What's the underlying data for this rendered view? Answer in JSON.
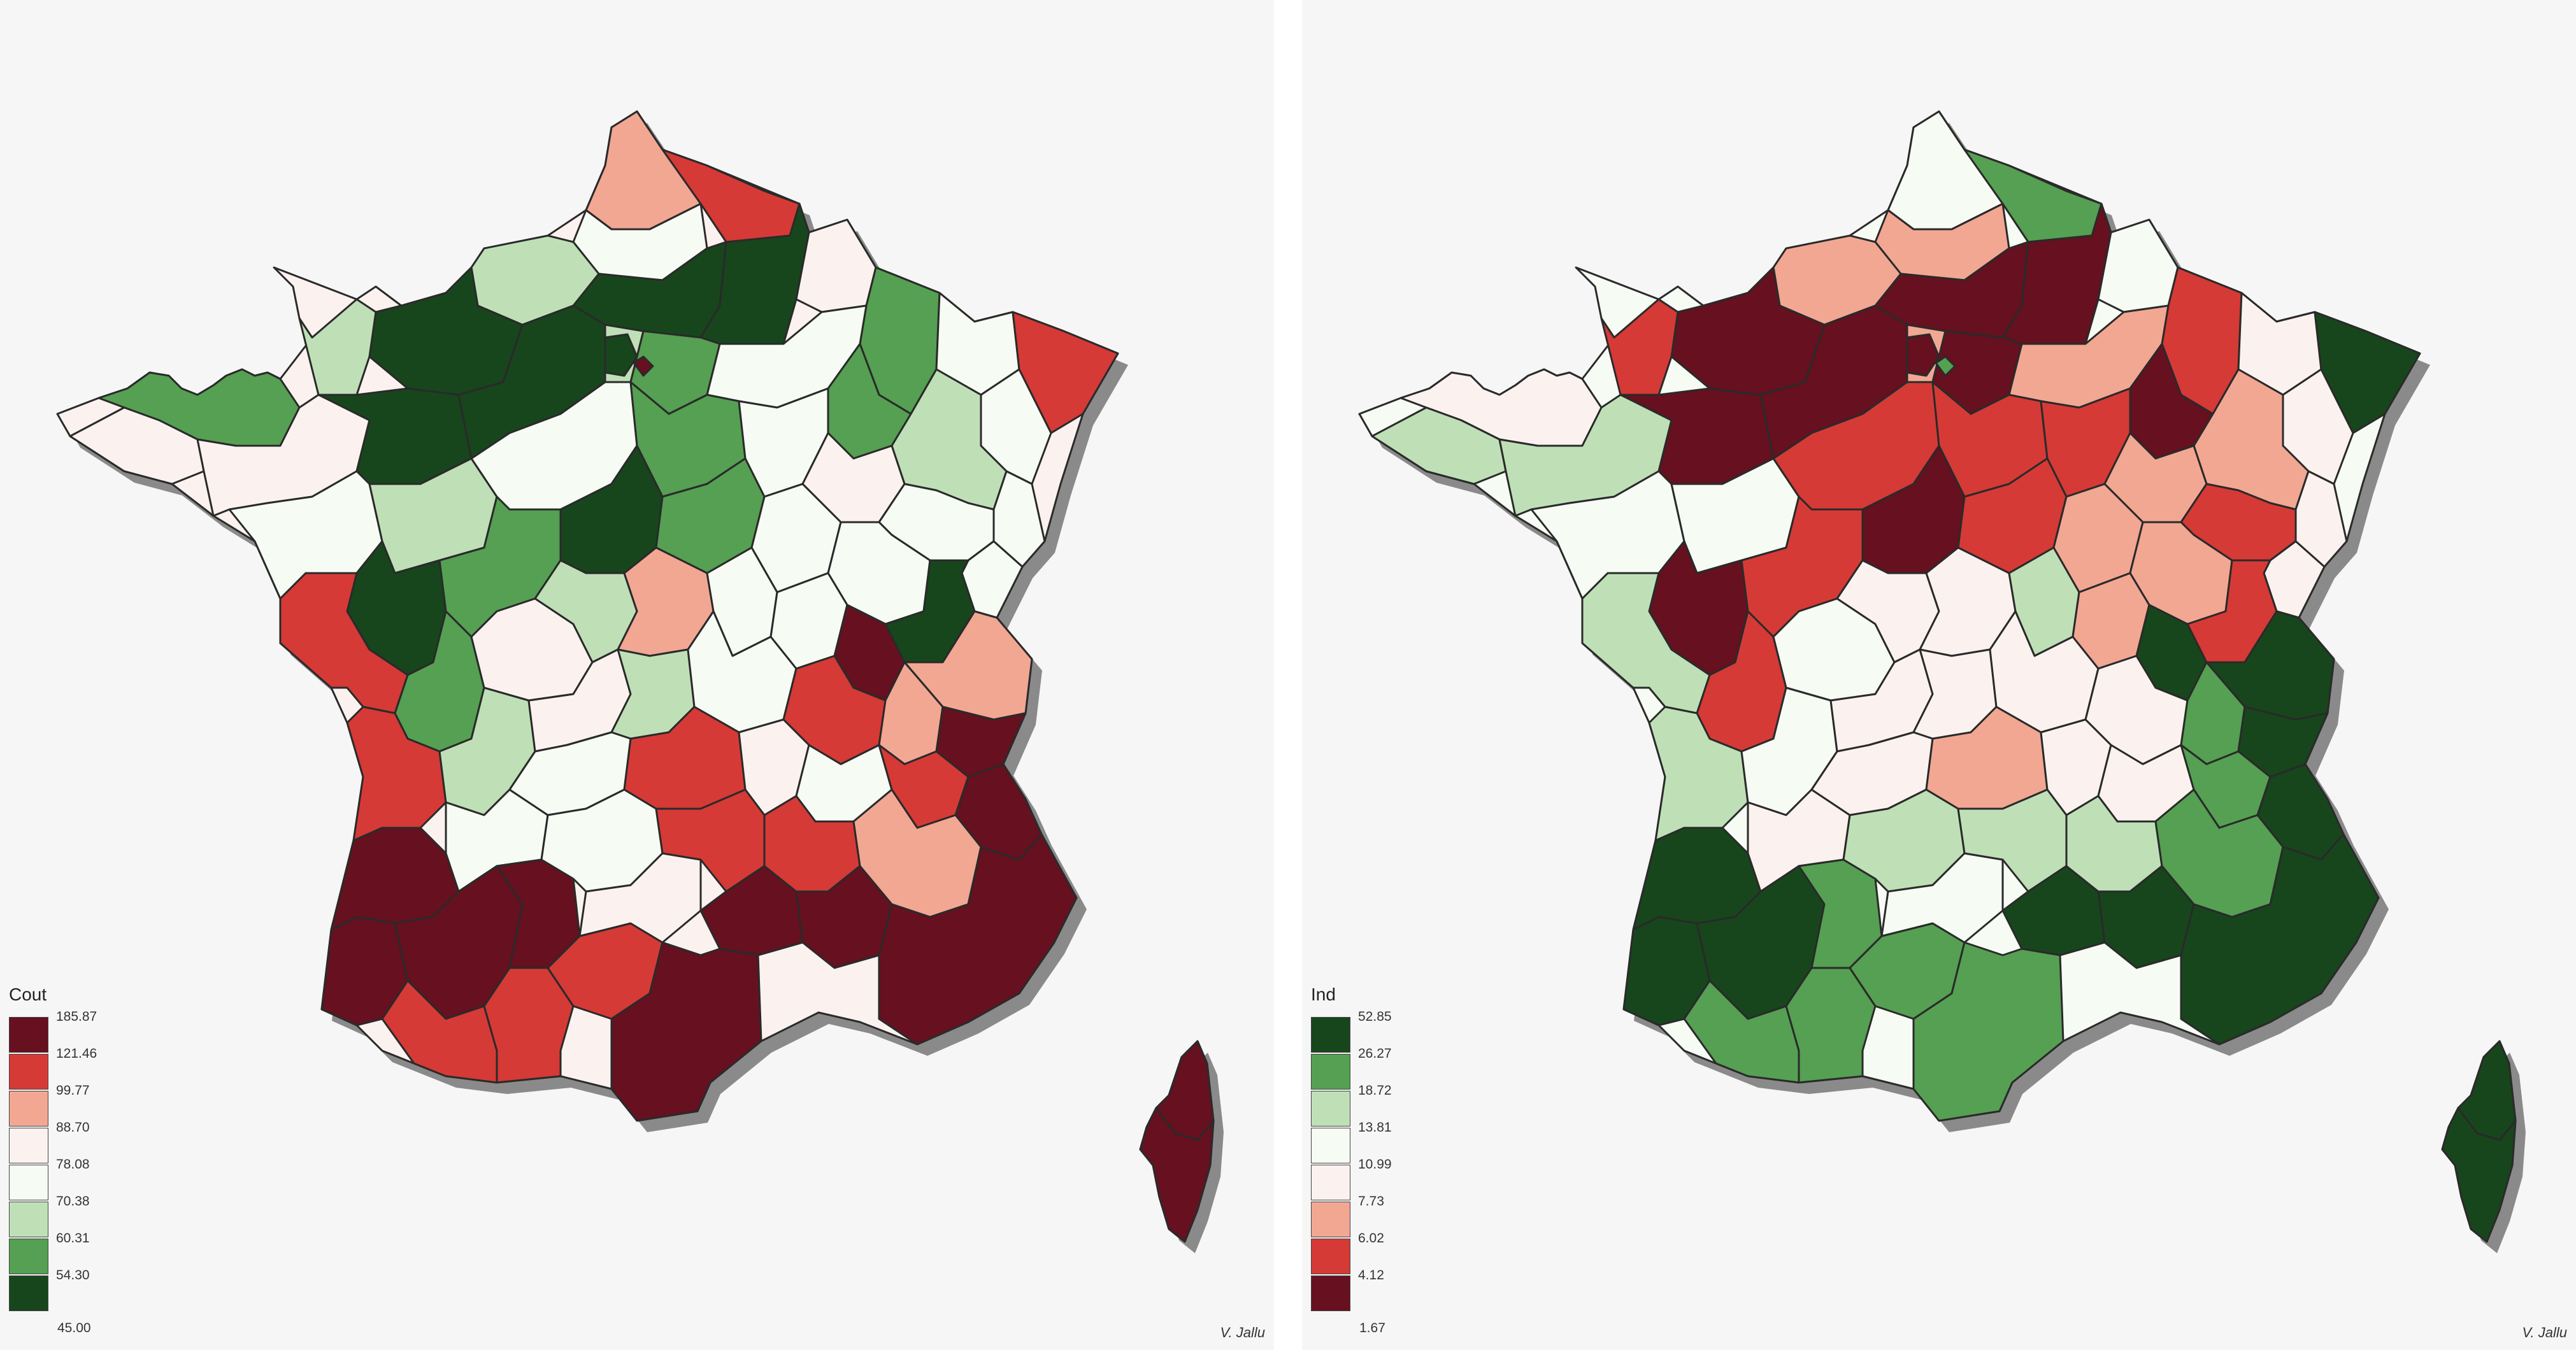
{
  "maps": [
    {
      "legend_title": "Cout",
      "credit": "V. Jallu",
      "breaks": [
        "185.87",
        "121.46",
        "99.77",
        "88.70",
        "78.08",
        "70.38",
        "60.31",
        "54.30",
        "45.00"
      ],
      "colors": [
        "#67101f",
        "#d63a36",
        "#f2a793",
        "#fbf2ef",
        "#f6fbf4",
        "#bfe0b7",
        "#55a052",
        "#17461c"
      ]
    },
    {
      "legend_title": "Ind",
      "credit": "V. Jallu",
      "breaks": [
        "52.85",
        "26.27",
        "18.72",
        "13.81",
        "10.99",
        "7.73",
        "6.02",
        "4.12",
        "1.67"
      ],
      "colors": [
        "#17461c",
        "#55a052",
        "#bfe0b7",
        "#f6fbf4",
        "#fbf2ef",
        "#f2a793",
        "#d63a36",
        "#67101f"
      ]
    }
  ]
}
